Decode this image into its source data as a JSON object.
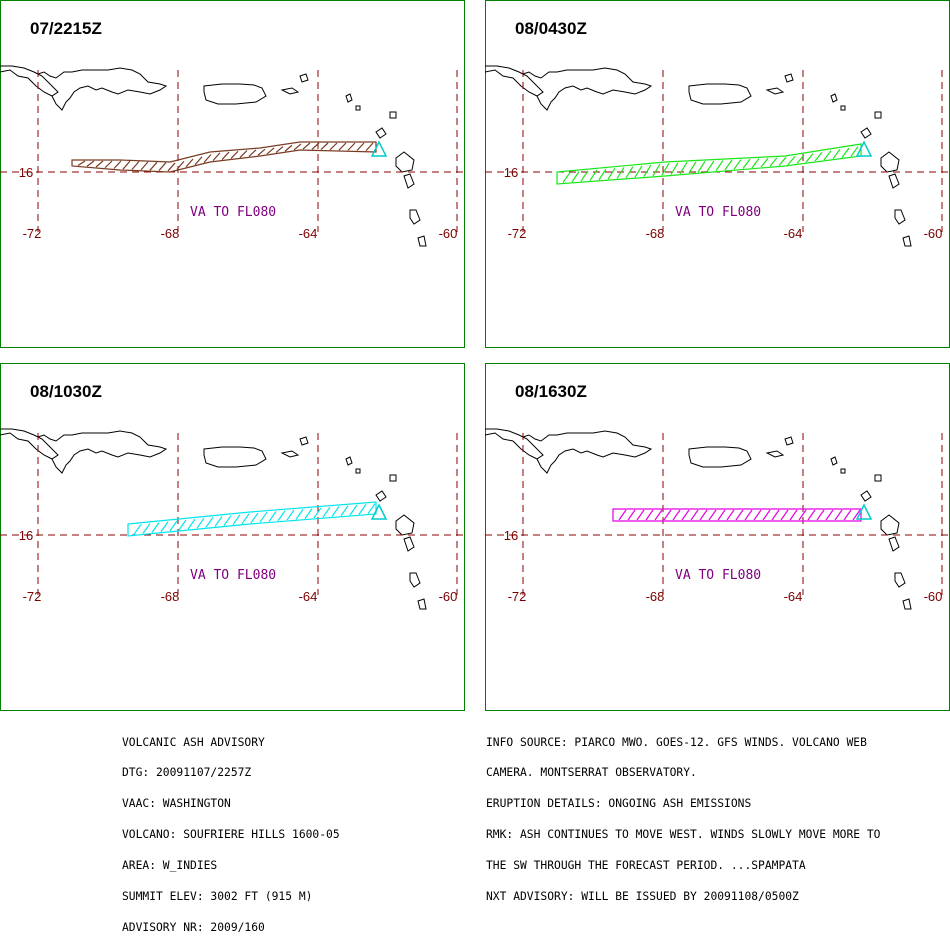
{
  "panels": [
    {
      "time": "07/2215Z",
      "plume_color": "#7b3b22",
      "plume_type": "wavy",
      "va_label": "VA TO FL080"
    },
    {
      "time": "08/0430Z",
      "plume_color": "#19e619",
      "plume_type": "sloped",
      "va_label": "VA TO FL080"
    },
    {
      "time": "08/1030Z",
      "plume_color": "#00e5ee",
      "plume_type": "sloped",
      "va_label": "VA TO FL080"
    },
    {
      "time": "08/1630Z",
      "plume_color": "#e600e6",
      "plume_type": "flat",
      "va_label": "VA TO FL080"
    }
  ],
  "map": {
    "lon_labels": [
      "-72",
      "-68",
      "-64",
      "-60"
    ],
    "lat_label": "16",
    "grid_color": "#8b0000",
    "frame_color": "#008000",
    "volcano_marker_color": "#00cccc"
  },
  "advisory_left": [
    "VOLCANIC ASH ADVISORY",
    "DTG: 20091107/2257Z",
    "VAAC: WASHINGTON",
    "VOLCANO: SOUFRIERE HILLS 1600-05",
    "AREA: W_INDIES",
    "SUMMIT ELEV: 3002 FT (915 M)",
    "ADVISORY NR: 2009/160"
  ],
  "advisory_right": [
    "INFO SOURCE: PIARCO MWO. GOES-12. GFS WINDS. VOLCANO WEB",
    "CAMERA. MONTSERRAT OBSERVATORY.",
    "ERUPTION DETAILS: ONGOING ASH EMISSIONS",
    "RMK: ASH CONTINUES TO MOVE WEST. WINDS SLOWLY MOVE MORE TO",
    "THE SW THROUGH THE FORECAST PERIOD. ...SPAMPATA",
    "NXT ADVISORY: WILL BE ISSUED BY 20091108/0500Z"
  ]
}
